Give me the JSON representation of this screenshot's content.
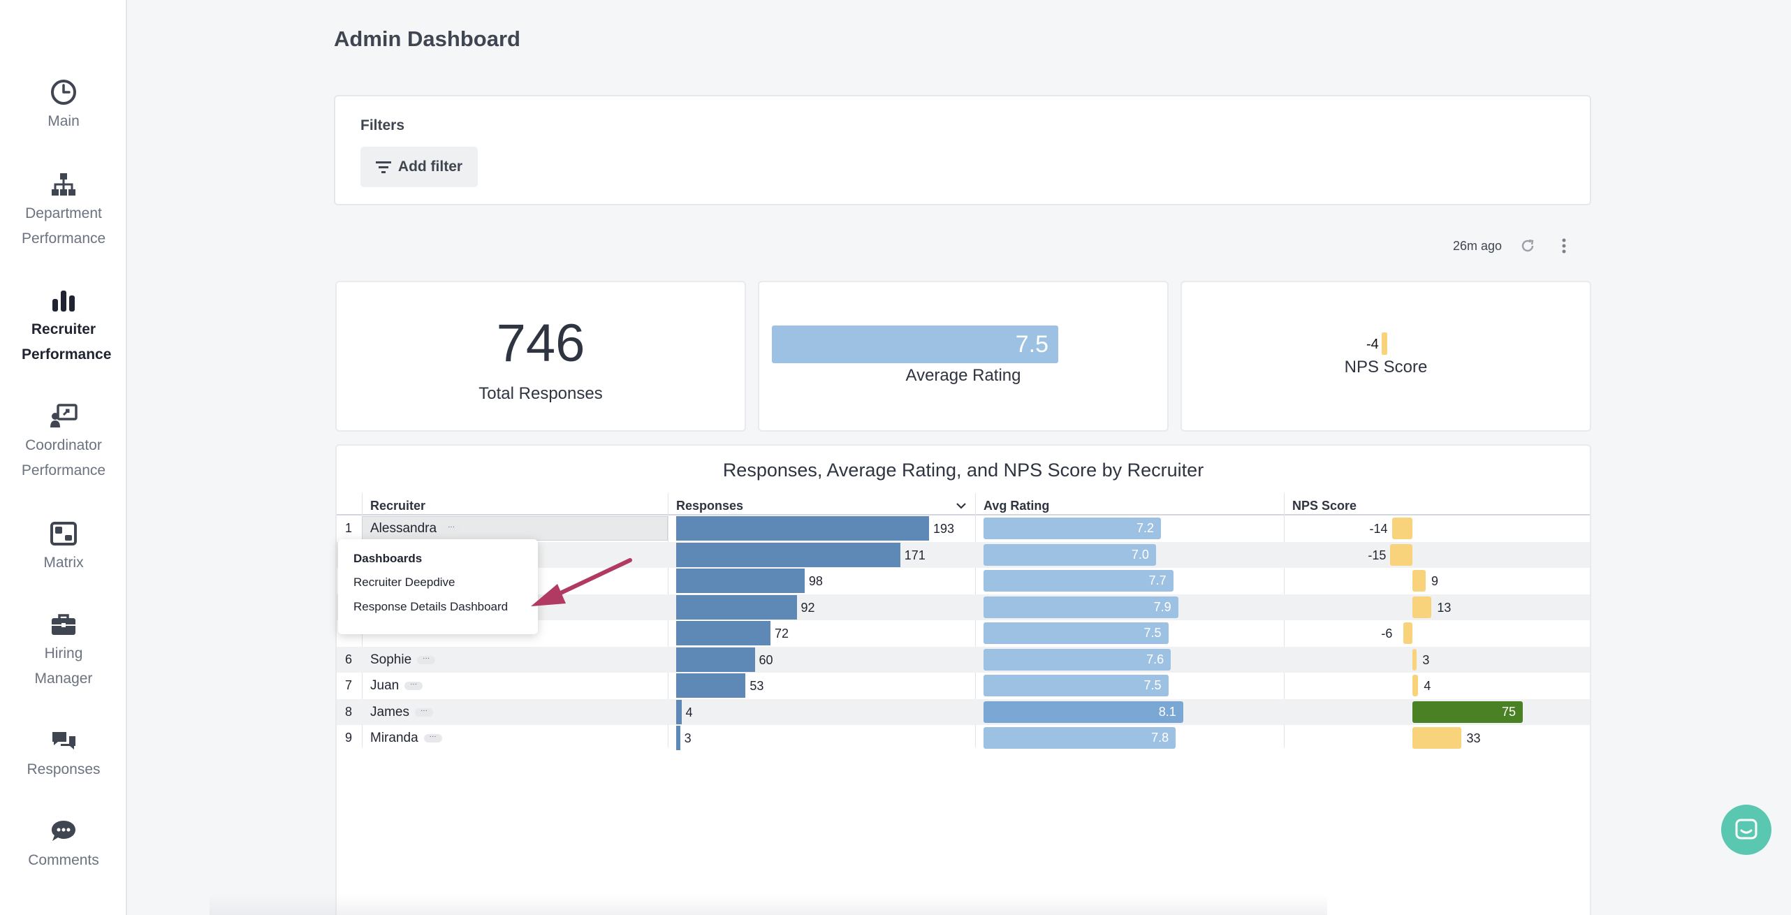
{
  "sidebar": {
    "items": [
      {
        "label": "Main",
        "icon": "gauge-icon"
      },
      {
        "label": "Department Performance",
        "icon": "org-chart-icon"
      },
      {
        "label": "Recruiter Performance",
        "icon": "bar-chart-icon",
        "active": true
      },
      {
        "label": "Coordinator Performance",
        "icon": "presentation-icon"
      },
      {
        "label": "Matrix",
        "icon": "matrix-icon"
      },
      {
        "label": "Hiring Manager",
        "icon": "briefcase-icon"
      },
      {
        "label": "Responses",
        "icon": "chat-bubbles-icon"
      },
      {
        "label": "Comments",
        "icon": "comment-icon"
      }
    ]
  },
  "header": {
    "title": "Admin Dashboard"
  },
  "filters": {
    "title": "Filters",
    "add_label": "Add filter"
  },
  "refresh": {
    "age": "26m ago"
  },
  "kpis": {
    "total_responses": {
      "value": "746",
      "label": "Total Responses"
    },
    "average_rating": {
      "value": "7.5",
      "label": "Average Rating"
    },
    "nps_score": {
      "value": "-4",
      "label": "NPS Score"
    }
  },
  "table": {
    "title": "Responses, Average Rating, and NPS Score by Recruiter",
    "columns": [
      "Recruiter",
      "Responses",
      "Avg Rating",
      "NPS Score"
    ],
    "rows": [
      {
        "idx": "1",
        "name": "Alessandra",
        "responses": 193,
        "rating": "7.2",
        "nps": -14
      },
      {
        "idx": "",
        "name": "",
        "responses": 171,
        "rating": "7.0",
        "nps": -15
      },
      {
        "idx": "",
        "name": "",
        "responses": 98,
        "rating": "7.7",
        "nps": 9
      },
      {
        "idx": "",
        "name": "",
        "responses": 92,
        "rating": "7.9",
        "nps": 13
      },
      {
        "idx": "",
        "name": "",
        "responses": 72,
        "rating": "7.5",
        "nps": -6
      },
      {
        "idx": "6",
        "name": "Sophie",
        "responses": 60,
        "rating": "7.6",
        "nps": 3
      },
      {
        "idx": "7",
        "name": "Juan",
        "responses": 53,
        "rating": "7.5",
        "nps": 4
      },
      {
        "idx": "8",
        "name": "James",
        "responses": 4,
        "rating": "8.1",
        "nps": 75
      },
      {
        "idx": "9",
        "name": "Miranda",
        "responses": 3,
        "rating": "7.8",
        "nps": 33
      }
    ]
  },
  "popup": {
    "heading": "Dashboards",
    "items": [
      "Recruiter Deepdive",
      "Response Details Dashboard"
    ]
  },
  "colors": {
    "accent_bar": "#5e88b5",
    "rating_bar": "#9dc1e2",
    "nps_bar": "#f9d37c",
    "nps_high": "#4b8125",
    "chat": "#5ac8b0"
  }
}
